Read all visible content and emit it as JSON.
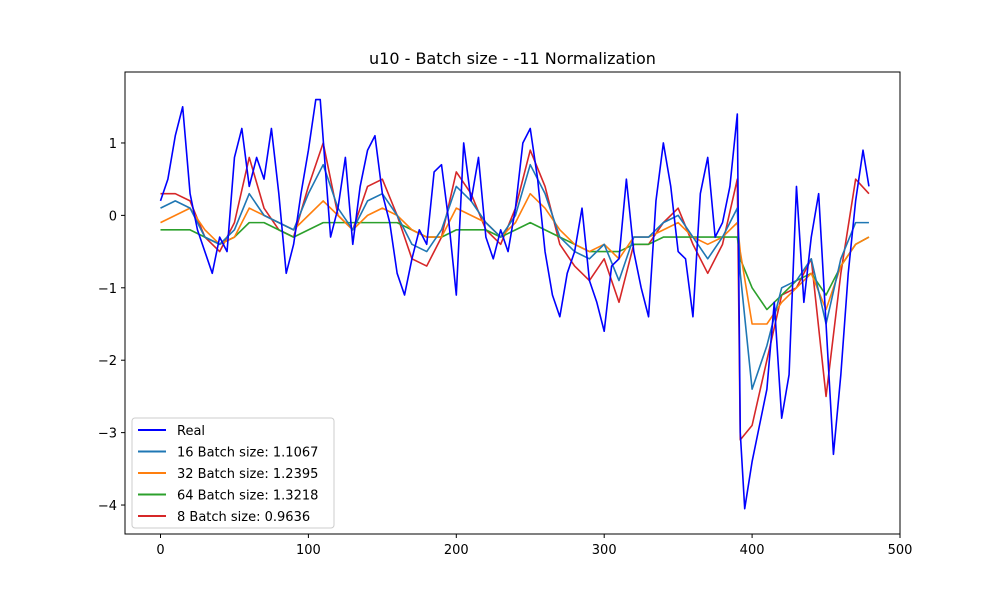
{
  "chart_data": {
    "type": "line",
    "title": "u10 - Batch size - -11 Normalization",
    "xlabel": "",
    "ylabel": "",
    "xlim": [
      -24,
      500
    ],
    "ylim": [
      -4.4,
      1.98
    ],
    "x_ticks": [
      0,
      100,
      200,
      300,
      400,
      500
    ],
    "y_ticks": [
      -4,
      -3,
      -2,
      -1,
      0,
      1
    ],
    "x_tick_labels": [
      "0",
      "100",
      "200",
      "300",
      "400",
      "500"
    ],
    "y_tick_labels": [
      "−4",
      "−3",
      "−2",
      "−1",
      "0",
      "1"
    ],
    "grid": false,
    "legend_position": "lower-left",
    "x_start": 0,
    "x_end": 479,
    "series": [
      {
        "name": "Real",
        "color": "#0000ff",
        "x": [
          0,
          5,
          10,
          15,
          20,
          25,
          30,
          35,
          40,
          45,
          50,
          55,
          60,
          65,
          70,
          75,
          80,
          85,
          90,
          95,
          100,
          105,
          108,
          112,
          115,
          120,
          125,
          130,
          135,
          140,
          145,
          150,
          155,
          160,
          165,
          170,
          175,
          180,
          185,
          190,
          195,
          200,
          205,
          210,
          215,
          220,
          225,
          230,
          235,
          240,
          245,
          250,
          255,
          260,
          265,
          270,
          275,
          280,
          285,
          290,
          295,
          300,
          305,
          310,
          315,
          320,
          325,
          330,
          335,
          340,
          345,
          350,
          355,
          360,
          365,
          370,
          375,
          380,
          385,
          390,
          392,
          395,
          400,
          405,
          410,
          415,
          420,
          425,
          430,
          435,
          440,
          445,
          450,
          455,
          460,
          465,
          470,
          475,
          479
        ],
        "y": [
          0.2,
          0.5,
          1.1,
          1.5,
          0.3,
          -0.2,
          -0.5,
          -0.8,
          -0.3,
          -0.5,
          0.8,
          1.2,
          0.4,
          0.8,
          0.5,
          1.2,
          0.3,
          -0.8,
          -0.4,
          0.3,
          0.9,
          1.6,
          1.6,
          0.5,
          -0.3,
          0.1,
          0.8,
          -0.4,
          0.4,
          0.9,
          1.1,
          0.3,
          -0.1,
          -0.8,
          -1.1,
          -0.6,
          -0.2,
          -0.4,
          0.6,
          0.7,
          -0.1,
          -1.1,
          1.0,
          0.2,
          0.8,
          -0.3,
          -0.6,
          -0.2,
          -0.5,
          0.1,
          1.0,
          1.2,
          0.5,
          -0.5,
          -1.1,
          -1.4,
          -0.8,
          -0.5,
          0.1,
          -0.9,
          -1.2,
          -1.6,
          -0.7,
          -0.6,
          0.5,
          -0.5,
          -1.0,
          -1.4,
          0.2,
          1.0,
          0.4,
          -0.5,
          -0.6,
          -1.4,
          0.3,
          0.8,
          -0.3,
          -0.1,
          0.4,
          1.4,
          -3.0,
          -4.05,
          -3.4,
          -2.9,
          -2.4,
          -1.2,
          -2.8,
          -2.2,
          0.4,
          -1.2,
          -0.3,
          0.3,
          -1.5,
          -3.3,
          -2.2,
          -0.8,
          0.2,
          0.9,
          0.4
        ]
      },
      {
        "name": "16 Batch size: 1.1067",
        "color": "#1f77b4",
        "x": [
          0,
          10,
          20,
          30,
          40,
          50,
          60,
          70,
          80,
          90,
          100,
          110,
          120,
          130,
          140,
          150,
          160,
          170,
          180,
          190,
          200,
          210,
          220,
          230,
          240,
          250,
          260,
          270,
          280,
          290,
          300,
          310,
          320,
          330,
          340,
          350,
          360,
          370,
          380,
          390,
          392,
          400,
          410,
          420,
          430,
          440,
          450,
          460,
          470,
          479
        ],
        "y": [
          0.1,
          0.2,
          0.1,
          -0.3,
          -0.4,
          -0.2,
          0.3,
          0.0,
          -0.1,
          -0.2,
          0.3,
          0.7,
          0.1,
          -0.2,
          0.2,
          0.3,
          0.0,
          -0.4,
          -0.5,
          -0.2,
          0.4,
          0.2,
          -0.1,
          -0.3,
          0.0,
          0.7,
          0.3,
          -0.3,
          -0.5,
          -0.6,
          -0.4,
          -0.9,
          -0.3,
          -0.3,
          -0.1,
          0.0,
          -0.3,
          -0.6,
          -0.3,
          0.1,
          -0.8,
          -2.4,
          -1.8,
          -1.0,
          -0.9,
          -0.6,
          -1.5,
          -0.6,
          -0.1,
          -0.1
        ]
      },
      {
        "name": "32 Batch size: 1.2395",
        "color": "#ff7f0e",
        "x": [
          0,
          10,
          20,
          30,
          40,
          50,
          60,
          70,
          80,
          90,
          100,
          110,
          120,
          130,
          140,
          150,
          160,
          170,
          180,
          190,
          200,
          210,
          220,
          230,
          240,
          250,
          260,
          270,
          280,
          290,
          300,
          310,
          320,
          330,
          340,
          350,
          360,
          370,
          380,
          390,
          392,
          400,
          410,
          420,
          430,
          440,
          450,
          460,
          470,
          479
        ],
        "y": [
          -0.1,
          0.0,
          0.1,
          -0.2,
          -0.4,
          -0.3,
          0.1,
          0.0,
          -0.1,
          -0.2,
          0.0,
          0.2,
          0.0,
          -0.2,
          0.0,
          0.1,
          0.0,
          -0.2,
          -0.3,
          -0.3,
          0.1,
          0.0,
          -0.1,
          -0.3,
          -0.1,
          0.3,
          0.1,
          -0.2,
          -0.4,
          -0.5,
          -0.4,
          -0.6,
          -0.3,
          -0.3,
          -0.2,
          -0.1,
          -0.3,
          -0.4,
          -0.3,
          -0.1,
          -0.5,
          -1.5,
          -1.5,
          -1.2,
          -1.0,
          -0.8,
          -1.3,
          -0.7,
          -0.4,
          -0.3
        ]
      },
      {
        "name": "64 Batch size: 1.3218",
        "color": "#2ca02c",
        "x": [
          0,
          10,
          20,
          30,
          40,
          50,
          60,
          70,
          80,
          90,
          100,
          110,
          120,
          130,
          140,
          150,
          160,
          170,
          180,
          190,
          200,
          210,
          220,
          230,
          240,
          250,
          260,
          270,
          280,
          290,
          300,
          310,
          320,
          330,
          340,
          350,
          360,
          370,
          380,
          390,
          392,
          400,
          410,
          420,
          430,
          440,
          450,
          460,
          470,
          479
        ],
        "y": [
          -0.2,
          -0.2,
          -0.2,
          -0.3,
          -0.4,
          -0.3,
          -0.1,
          -0.1,
          -0.2,
          -0.3,
          -0.2,
          -0.1,
          -0.1,
          -0.1,
          -0.1,
          -0.1,
          -0.1,
          -0.2,
          -0.3,
          -0.3,
          -0.2,
          -0.2,
          -0.2,
          -0.3,
          -0.2,
          -0.1,
          -0.2,
          -0.3,
          -0.4,
          -0.5,
          -0.5,
          -0.5,
          -0.4,
          -0.4,
          -0.3,
          -0.3,
          -0.3,
          -0.3,
          -0.3,
          -0.3,
          -0.6,
          -1.0,
          -1.3,
          -1.1,
          -0.9,
          -0.8,
          -1.1,
          -0.7,
          -0.4,
          -0.3
        ]
      },
      {
        "name": "8 Batch size: 0.9636",
        "color": "#d62728",
        "x": [
          0,
          10,
          20,
          30,
          40,
          50,
          60,
          70,
          80,
          90,
          100,
          110,
          120,
          130,
          140,
          150,
          160,
          170,
          180,
          190,
          200,
          210,
          220,
          230,
          240,
          250,
          260,
          270,
          280,
          290,
          300,
          310,
          320,
          330,
          340,
          350,
          360,
          370,
          380,
          390,
          392,
          400,
          410,
          420,
          430,
          440,
          450,
          460,
          470,
          479
        ],
        "y": [
          0.3,
          0.3,
          0.2,
          -0.3,
          -0.5,
          -0.1,
          0.8,
          0.1,
          -0.2,
          -0.3,
          0.4,
          1.0,
          0.0,
          -0.2,
          0.4,
          0.5,
          0.0,
          -0.6,
          -0.7,
          -0.3,
          0.6,
          0.3,
          -0.2,
          -0.4,
          0.1,
          0.9,
          0.4,
          -0.4,
          -0.7,
          -0.9,
          -0.6,
          -1.2,
          -0.4,
          -0.4,
          -0.1,
          0.1,
          -0.4,
          -0.8,
          -0.4,
          0.5,
          -3.1,
          -2.9,
          -2.0,
          -1.1,
          -1.0,
          -0.6,
          -2.5,
          -0.8,
          0.5,
          0.3
        ]
      }
    ]
  }
}
